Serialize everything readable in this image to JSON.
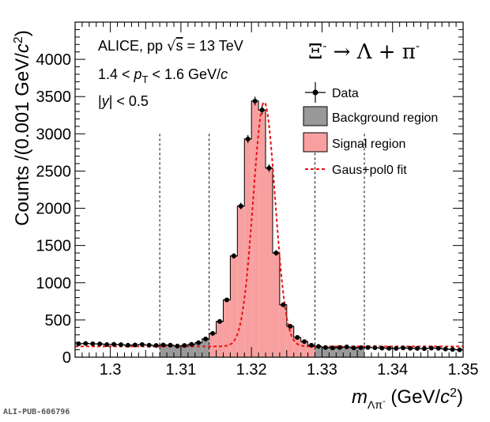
{
  "chart_data": {
    "type": "histogram",
    "title": "",
    "xlabel": "m_{Λπ⁻} (GeV/c²)",
    "ylabel": "Counts /(0.001 GeV/c²)",
    "xlim": [
      1.295,
      1.35
    ],
    "ylim": [
      0,
      4500
    ],
    "x_ticks": [
      "1.3",
      "1.31",
      "1.32",
      "1.33",
      "1.34",
      "1.35"
    ],
    "x_tick_values": [
      1.3,
      1.31,
      1.32,
      1.33,
      1.34,
      1.35
    ],
    "y_ticks": [
      "0",
      "500",
      "1000",
      "1500",
      "2000",
      "2500",
      "3000",
      "3500",
      "4000"
    ],
    "y_tick_values": [
      0,
      500,
      1000,
      1500,
      2000,
      2500,
      3000,
      3500,
      4000
    ],
    "bin_width": 0.001,
    "bin_centers": [
      1.2955,
      1.2965,
      1.2975,
      1.2985,
      1.2995,
      1.3005,
      1.3015,
      1.3025,
      1.3035,
      1.3045,
      1.3055,
      1.3065,
      1.3075,
      1.3085,
      1.3095,
      1.3105,
      1.3115,
      1.3125,
      1.3135,
      1.3145,
      1.3155,
      1.3165,
      1.3175,
      1.3185,
      1.3195,
      1.3205,
      1.3215,
      1.3225,
      1.3235,
      1.3245,
      1.3255,
      1.3265,
      1.3275,
      1.3285,
      1.3295,
      1.3305,
      1.3315,
      1.3325,
      1.3335,
      1.3345,
      1.3355,
      1.3365,
      1.3375,
      1.3385,
      1.3395,
      1.3405,
      1.3415,
      1.3425,
      1.3435,
      1.3445,
      1.3455,
      1.3465,
      1.3475,
      1.3485,
      1.3495
    ],
    "counts": [
      180,
      185,
      180,
      178,
      170,
      172,
      168,
      160,
      165,
      170,
      160,
      158,
      165,
      162,
      150,
      158,
      172,
      195,
      245,
      320,
      480,
      770,
      1360,
      2030,
      2930,
      3440,
      3320,
      2540,
      1400,
      705,
      415,
      265,
      210,
      160,
      145,
      130,
      125,
      130,
      138,
      125,
      128,
      130,
      127,
      122,
      120,
      118,
      125,
      120,
      118,
      115,
      122,
      120,
      110,
      105,
      100
    ],
    "background_regions": [
      [
        1.307,
        1.314
      ],
      [
        1.329,
        1.336
      ]
    ],
    "signal_region": [
      1.314,
      1.329
    ],
    "dashed_lines": [
      1.307,
      1.314,
      1.329,
      1.336
    ],
    "fit": {
      "model": "Gaus+pol0",
      "mean": 1.3218,
      "sigma": 0.00155,
      "amplitude": 3280,
      "constant": 145
    },
    "legend": [
      {
        "label": "Data",
        "kind": "marker"
      },
      {
        "label": "Background region",
        "kind": "fill",
        "color": "#999999"
      },
      {
        "label": "Signal region",
        "kind": "fill",
        "color": "#f8a0a0"
      },
      {
        "label": "Gaus+pol0 fit",
        "kind": "dashed-line",
        "color": "#ee1111"
      }
    ],
    "annotations": {
      "experiment": "ALICE, pp √s = 13 TeV",
      "pt_range": "1.4 < p_T < 1.6 GeV/c",
      "rapidity": "|y| < 0.5",
      "decay": "Ξ⁻ → Λ + π⁻"
    },
    "colors": {
      "background_fill": "#999999",
      "signal_fill": "#f8a0a0",
      "fit_line": "#ee1111",
      "data": "#000000"
    }
  },
  "footer_id": "ALI-PUB-606796"
}
